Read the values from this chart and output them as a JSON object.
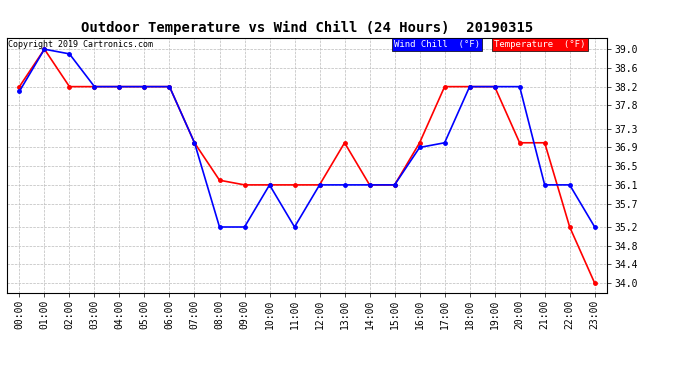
{
  "title": "Outdoor Temperature vs Wind Chill (24 Hours)  20190315",
  "copyright_text": "Copyright 2019 Cartronics.com",
  "x_labels": [
    "00:00",
    "01:00",
    "02:00",
    "03:00",
    "04:00",
    "05:00",
    "06:00",
    "07:00",
    "08:00",
    "09:00",
    "10:00",
    "11:00",
    "12:00",
    "13:00",
    "14:00",
    "15:00",
    "16:00",
    "17:00",
    "18:00",
    "19:00",
    "20:00",
    "21:00",
    "22:00",
    "23:00"
  ],
  "temperature": [
    38.2,
    39.0,
    38.2,
    38.2,
    38.2,
    38.2,
    38.2,
    37.0,
    36.2,
    36.1,
    36.1,
    36.1,
    36.1,
    37.0,
    36.1,
    36.1,
    37.0,
    38.2,
    38.2,
    38.2,
    37.0,
    37.0,
    35.2,
    34.0
  ],
  "wind_chill": [
    38.1,
    39.0,
    38.9,
    38.2,
    38.2,
    38.2,
    38.2,
    37.0,
    35.2,
    35.2,
    36.1,
    35.2,
    36.1,
    36.1,
    36.1,
    36.1,
    36.9,
    37.0,
    38.2,
    38.2,
    38.2,
    36.1,
    36.1,
    35.2
  ],
  "ylim_min": 33.8,
  "ylim_max": 39.25,
  "yticks": [
    34.0,
    34.4,
    34.8,
    35.2,
    35.7,
    36.1,
    36.5,
    36.9,
    37.3,
    37.8,
    38.2,
    38.6,
    39.0
  ],
  "temp_color": "#FF0000",
  "wind_chill_color": "#0000FF",
  "legend_wc_bg": "#0000FF",
  "legend_temp_bg": "#FF0000",
  "background_color": "#FFFFFF",
  "grid_color": "#BBBBBB",
  "title_fontsize": 10,
  "copyright_fontsize": 6,
  "axis_fontsize": 7
}
